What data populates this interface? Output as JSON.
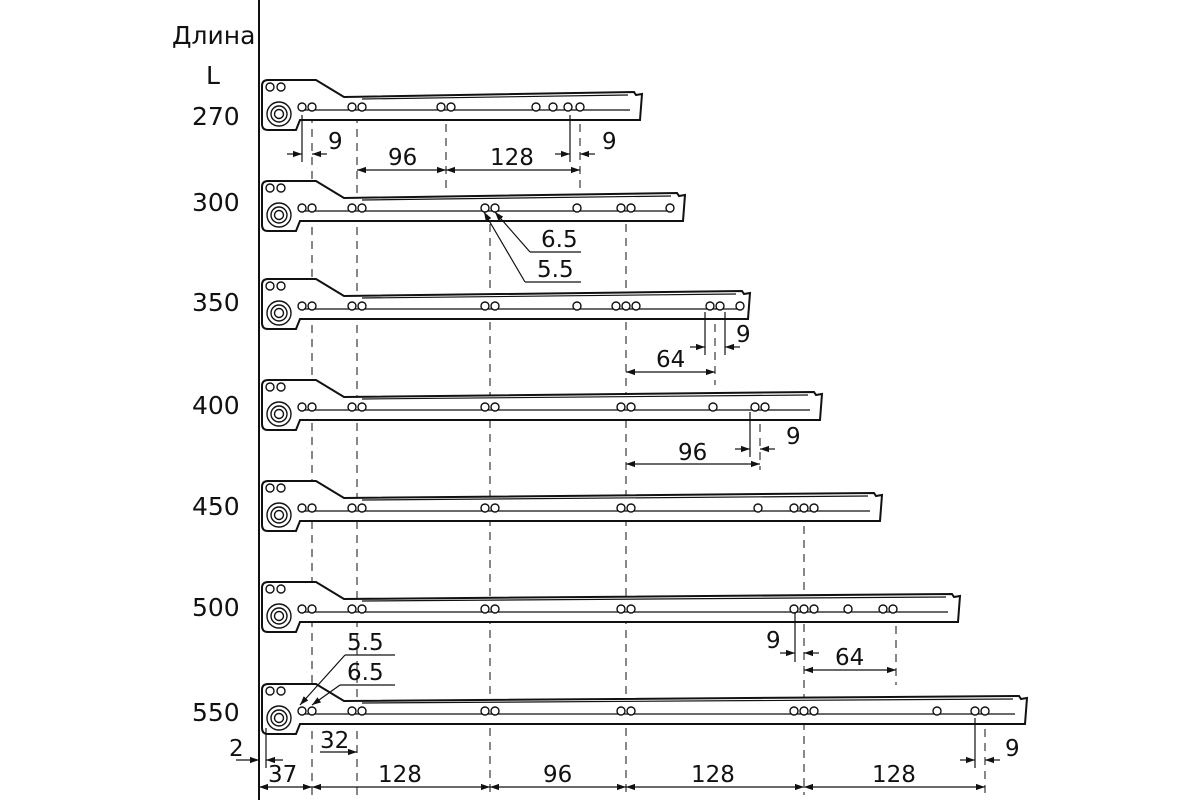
{
  "header": {
    "title_line1": "Длина",
    "title_line2": "L"
  },
  "rows": [
    {
      "length": "270"
    },
    {
      "length": "300"
    },
    {
      "length": "350"
    },
    {
      "length": "400"
    },
    {
      "length": "450"
    },
    {
      "length": "500"
    },
    {
      "length": "550"
    }
  ],
  "dimensions": {
    "r270_left_9": "9",
    "r270_96": "96",
    "r270_128": "128",
    "r270_right_9": "9",
    "r300_hole_a": "6.5",
    "r300_hole_b": "5.5",
    "r350_64": "64",
    "r350_9": "9",
    "r400_96": "96",
    "r400_9": "9",
    "r500_9": "9",
    "r500_64": "64",
    "r550_hole_a": "5.5",
    "r550_hole_b": "6.5",
    "bottom_2": "2",
    "bottom_32": "32",
    "bottom_37": "37",
    "bottom_128_a": "128",
    "bottom_96": "96",
    "bottom_128_b": "128",
    "bottom_128_c": "128",
    "bottom_9": "9"
  },
  "colors": {
    "ink": "#111111",
    "background": "#ffffff"
  }
}
